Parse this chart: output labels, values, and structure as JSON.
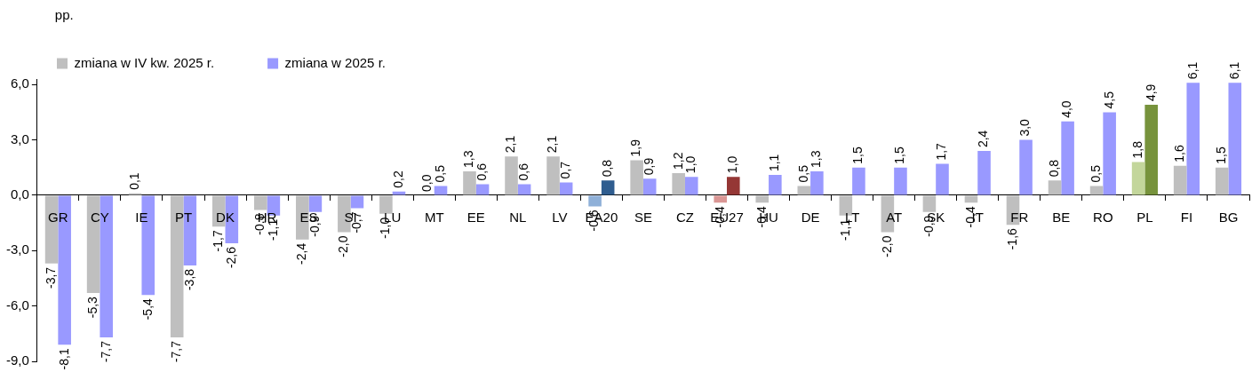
{
  "chart_data": {
    "type": "bar",
    "ylabel": "pp.",
    "legend": "top left",
    "grid": false,
    "categories": [
      "GR",
      "CY",
      "IE",
      "PT",
      "DK",
      "HR",
      "ES",
      "SI",
      "LU",
      "MT",
      "EE",
      "NL",
      "LV",
      "EA20",
      "SE",
      "CZ",
      "EU27",
      "HU",
      "DE",
      "LT",
      "AT",
      "SK",
      "IT",
      "FR",
      "BE",
      "RO",
      "PL",
      "FI",
      "BG"
    ],
    "ylim": [
      -9,
      6.3
    ],
    "yticks": [
      {
        "value": -9,
        "label": "-9,0"
      },
      {
        "value": -6,
        "label": "-6,0"
      },
      {
        "value": -3,
        "label": "-3,0"
      },
      {
        "value": 0,
        "label": "0,0"
      },
      {
        "value": 3,
        "label": "3,0"
      },
      {
        "value": 6,
        "label": "6,0"
      }
    ],
    "series": [
      {
        "name": "zmiana w IV kw. 2025 r.",
        "color": "#bfbfbf",
        "colors": [
          "#bfbfbf",
          "#bfbfbf",
          "#bfbfbf",
          "#bfbfbf",
          "#bfbfbf",
          "#bfbfbf",
          "#bfbfbf",
          "#bfbfbf",
          "#bfbfbf",
          "#bfbfbf",
          "#bfbfbf",
          "#bfbfbf",
          "#bfbfbf",
          "#8fb0d8",
          "#bfbfbf",
          "#bfbfbf",
          "#da9694",
          "#bfbfbf",
          "#bfbfbf",
          "#bfbfbf",
          "#bfbfbf",
          "#bfbfbf",
          "#bfbfbf",
          "#bfbfbf",
          "#bfbfbf",
          "#bfbfbf",
          "#c3d69b",
          "#bfbfbf",
          "#bfbfbf"
        ],
        "values": [
          -3.7,
          -5.3,
          0.1,
          -7.7,
          -1.7,
          -0.8,
          -2.4,
          -2.0,
          -1.0,
          0.0,
          1.3,
          2.1,
          2.1,
          -0.6,
          1.9,
          1.2,
          -0.4,
          -0.4,
          0.5,
          -1.1,
          -2.0,
          -0.9,
          -0.4,
          -1.6,
          0.8,
          0.5,
          1.8,
          1.6,
          1.5
        ],
        "value_labels": [
          "-3,7",
          "-5,3",
          "0,1",
          "-7,7",
          "-1,7",
          "-0,8",
          "-2,4",
          "-2,0",
          "-1,0",
          "0,0",
          "1,3",
          "2,1",
          "2,1",
          "-0,6",
          "1,9",
          "1,2",
          "-0,4",
          "-0,4",
          "0,5",
          "-1,1",
          "-2,0",
          "-0,9",
          "-0,4",
          "-1,6",
          "0,8",
          "0,5",
          "1,8",
          "1,6",
          "1,5"
        ]
      },
      {
        "name": "zmiana w 2025 r.",
        "color": "#9999ff",
        "colors": [
          "#9999ff",
          "#9999ff",
          "#9999ff",
          "#9999ff",
          "#9999ff",
          "#9999ff",
          "#9999ff",
          "#9999ff",
          "#9999ff",
          "#9999ff",
          "#9999ff",
          "#9999ff",
          "#9999ff",
          "#2f5d8f",
          "#9999ff",
          "#9999ff",
          "#953735",
          "#9999ff",
          "#9999ff",
          "#9999ff",
          "#9999ff",
          "#9999ff",
          "#9999ff",
          "#9999ff",
          "#9999ff",
          "#9999ff",
          "#77933c",
          "#9999ff",
          "#9999ff"
        ],
        "values": [
          -8.1,
          -7.7,
          -5.4,
          -3.8,
          -2.6,
          -1.1,
          -0.9,
          -0.7,
          0.2,
          0.5,
          0.6,
          0.6,
          0.7,
          0.8,
          0.9,
          1.0,
          1.0,
          1.1,
          1.3,
          1.5,
          1.5,
          1.7,
          2.4,
          3.0,
          4.0,
          4.5,
          4.9,
          6.1,
          6.1
        ],
        "value_labels": [
          "-8,1",
          "-7,7",
          "-5,4",
          "-3,8",
          "-2,6",
          "-1,1",
          "-0,9",
          "-0,7",
          "0,2",
          "0,5",
          "0,6",
          "0,6",
          "0,7",
          "0,8",
          "0,9",
          "1,0",
          "1,0",
          "1,1",
          "1,3",
          "1,5",
          "1,5",
          "1,7",
          "2,4",
          "3,0",
          "4,0",
          "4,5",
          "4,9",
          "6,1",
          "6,1"
        ]
      }
    ]
  }
}
